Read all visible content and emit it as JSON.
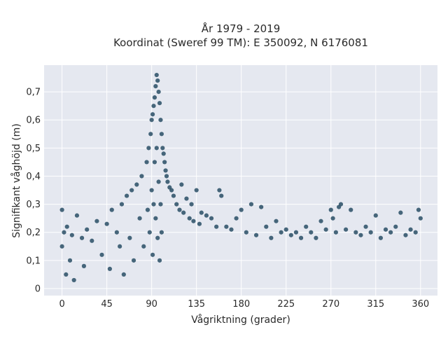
{
  "chart_data": {
    "type": "scatter",
    "title_lines": [
      "År 1979 - 2019",
      "Koordinat (Sweref 99 TM): E 350092, N 6176081"
    ],
    "xlabel": "Vågriktning (grader)",
    "ylabel": "Signifikant våghöjd (m)",
    "xlim": [
      -18,
      377
    ],
    "ylim": [
      -0.025,
      0.795
    ],
    "x_ticks": [
      0,
      45,
      90,
      135,
      180,
      225,
      270,
      315,
      360
    ],
    "x_tick_labels": [
      "0",
      "45",
      "90",
      "135",
      "180",
      "225",
      "270",
      "315",
      "360"
    ],
    "y_ticks": [
      0,
      0.1,
      0.2,
      0.3,
      0.4,
      0.5,
      0.6,
      0.7
    ],
    "y_tick_labels": [
      "0",
      "0,1",
      "0,2",
      "0,3",
      "0,4",
      "0,5",
      "0,6",
      "0,7"
    ],
    "grid": true,
    "legend": "none",
    "colors": {
      "marker": "#2f5269",
      "plot_background": "#e5e8f0",
      "grid": "#ffffff"
    },
    "series": [
      {
        "values_note": "dense scatter cloud; representative points below",
        "x": [
          0,
          0,
          2,
          4,
          5,
          8,
          10,
          12,
          15,
          20,
          22,
          25,
          30,
          35,
          40,
          45,
          48,
          50,
          55,
          58,
          60,
          62,
          65,
          68,
          70,
          72,
          75,
          78,
          80,
          82,
          85,
          86,
          87,
          88,
          89,
          90,
          90,
          91,
          91,
          92,
          92,
          93,
          93,
          94,
          94,
          95,
          95,
          96,
          96,
          97,
          97,
          98,
          98,
          99,
          99,
          100,
          100,
          101,
          102,
          103,
          104,
          105,
          106,
          108,
          110,
          112,
          115,
          118,
          120,
          122,
          125,
          128,
          130,
          132,
          135,
          138,
          140,
          145,
          150,
          155,
          158,
          160,
          165,
          170,
          175,
          180,
          185,
          190,
          195,
          200,
          205,
          210,
          215,
          220,
          225,
          230,
          235,
          240,
          245,
          250,
          255,
          260,
          265,
          270,
          272,
          275,
          278,
          280,
          285,
          290,
          295,
          300,
          305,
          310,
          315,
          320,
          325,
          330,
          335,
          340,
          345,
          350,
          355,
          358,
          360
        ],
        "y": [
          0.28,
          0.15,
          0.2,
          0.05,
          0.22,
          0.1,
          0.19,
          0.03,
          0.26,
          0.18,
          0.08,
          0.21,
          0.17,
          0.24,
          0.12,
          0.23,
          0.07,
          0.28,
          0.2,
          0.15,
          0.3,
          0.05,
          0.33,
          0.18,
          0.35,
          0.1,
          0.37,
          0.25,
          0.4,
          0.15,
          0.45,
          0.28,
          0.5,
          0.2,
          0.55,
          0.6,
          0.35,
          0.62,
          0.12,
          0.65,
          0.3,
          0.68,
          0.45,
          0.72,
          0.25,
          0.76,
          0.5,
          0.74,
          0.18,
          0.7,
          0.38,
          0.66,
          0.1,
          0.6,
          0.3,
          0.55,
          0.2,
          0.5,
          0.48,
          0.45,
          0.42,
          0.4,
          0.38,
          0.36,
          0.35,
          0.33,
          0.3,
          0.28,
          0.37,
          0.27,
          0.32,
          0.25,
          0.3,
          0.24,
          0.35,
          0.23,
          0.27,
          0.26,
          0.25,
          0.22,
          0.35,
          0.33,
          0.22,
          0.21,
          0.25,
          0.28,
          0.2,
          0.3,
          0.19,
          0.29,
          0.22,
          0.18,
          0.24,
          0.2,
          0.21,
          0.19,
          0.2,
          0.18,
          0.22,
          0.2,
          0.18,
          0.24,
          0.21,
          0.28,
          0.25,
          0.2,
          0.29,
          0.3,
          0.21,
          0.28,
          0.2,
          0.19,
          0.22,
          0.2,
          0.26,
          0.18,
          0.21,
          0.2,
          0.22,
          0.27,
          0.19,
          0.21,
          0.2,
          0.28,
          0.25
        ]
      }
    ]
  }
}
